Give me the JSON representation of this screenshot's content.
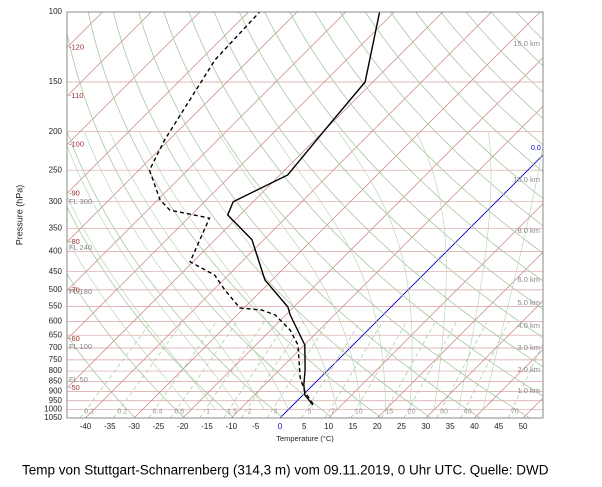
{
  "chart_data": {
    "type": "skewt",
    "caption": "Temp von Stuttgart-Schnarrenberg (314,3 m) vom 09.11.2019, 0 Uhr UTC. Quelle: DWD",
    "xlabel": "Temperature (°C)",
    "ylabel": "Pressure (hPa)",
    "xlim": [
      -43.8,
      54.1
    ],
    "ylim": [
      1050,
      100
    ],
    "log_y": true,
    "skew_deg": 45,
    "xticks": [
      -40,
      -35,
      -30,
      -25,
      -20,
      -15,
      -10,
      -5,
      0,
      5,
      10,
      15,
      20,
      25,
      30,
      35,
      40,
      45,
      50
    ],
    "yticks": [
      100,
      150,
      200,
      250,
      300,
      350,
      400,
      450,
      500,
      550,
      600,
      650,
      700,
      750,
      800,
      850,
      900,
      950,
      1000,
      1050
    ],
    "freezing_color": "#0000cc",
    "isotherm_zero_label": {
      "value": 0,
      "label": "0.0"
    },
    "isotherm_labels": [
      -120,
      -110,
      -100,
      -90,
      -80,
      -70,
      -60,
      -50
    ],
    "flight_levels": [
      {
        "value": 300,
        "label": "FL 300"
      },
      {
        "value": 240,
        "label": "FL 240"
      },
      {
        "value": 180,
        "label": "FL 180"
      },
      {
        "value": 100,
        "label": "FL 100"
      },
      {
        "value": 50,
        "label": "FL 50"
      }
    ],
    "heights_km": [
      {
        "value": 15,
        "label": "15.0 km"
      },
      {
        "value": 10,
        "label": "10.0 km"
      },
      {
        "value": 8,
        "label": "8.0 km"
      },
      {
        "value": 6,
        "label": "6.0 km"
      },
      {
        "value": 5,
        "label": "5.0 km"
      },
      {
        "value": 4,
        "label": "4.0 km"
      },
      {
        "value": 3,
        "label": "3.0 km"
      },
      {
        "value": 2,
        "label": "2.0 km"
      },
      {
        "value": 1,
        "label": "1.0 km"
      }
    ],
    "mixing_ratios": [
      0.1,
      0.2,
      0.4,
      0.6,
      1,
      1.5,
      2,
      3,
      5,
      7,
      10,
      15,
      20,
      30,
      40,
      70
    ],
    "series": [
      {
        "color": "#000000",
        "dashed": false,
        "pressure": [
          974,
          919,
          867,
          795,
          688,
          578,
          552,
          472,
          374,
          324,
          300,
          257,
          198,
          150,
          100
        ],
        "values": [
          4.1,
          0.4,
          -1.9,
          -4.7,
          -9.9,
          -19.1,
          -21.2,
          -31.5,
          -42.4,
          -52.5,
          -54.1,
          -48.4,
          -50,
          -51.6,
          -63
        ]
      },
      {
        "color": "#000000",
        "dashed": true,
        "pressure": [
          968,
          903,
          832,
          688,
          631,
          578,
          562,
          555,
          500,
          459,
          425,
          330,
          315,
          297,
          250,
          210,
          132,
          100
        ],
        "values": [
          3.9,
          -0.2,
          -4.1,
          -11.3,
          -16,
          -22.2,
          -25.9,
          -30.9,
          -37.7,
          -42.8,
          -50.6,
          -55.6,
          -65.4,
          -69.5,
          -77.8,
          -80.9,
          -87,
          -87.7
        ]
      }
    ]
  }
}
